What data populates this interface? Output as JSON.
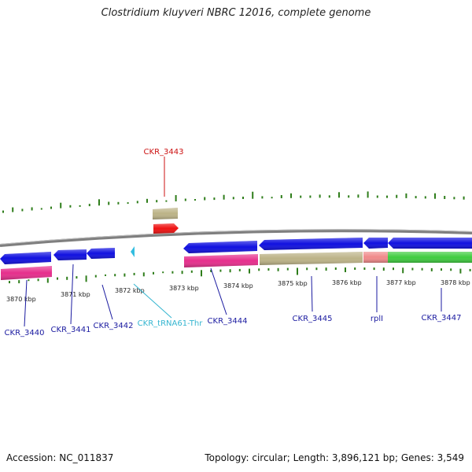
{
  "title": "Clostridium kluyveri NBRC 12016, complete genome",
  "accession": "Accession: NC_011837",
  "topology": "Topology: circular; Length: 3,896,121 bp; Genes: 3,549",
  "colors": {
    "backbone": "#808080",
    "gc_tick": "#2e7d1a",
    "cds_forward": "#1010e0",
    "cds_reverse_pink": "#e62e8c",
    "cds_olive": "#bcb387",
    "cds_green": "#3fcc3f",
    "cds_salmon": "#f08a8a",
    "cds_red": "#ee1111",
    "trna": "#33bde0",
    "label_blue": "#1a1aa0",
    "label_red": "#cc1111",
    "label_cyan": "#33b5d0"
  },
  "scale_labels": [
    "3870 kbp",
    "3871 kbp",
    "3872 kbp",
    "3873 kbp",
    "3874 kbp",
    "3875 kbp",
    "3876 kbp",
    "3877 kbp",
    "3878 kbp"
  ],
  "gene_labels": [
    {
      "text": "CKR_3443",
      "color": "label_red"
    },
    {
      "text": "CKR_3440",
      "color": "label_blue"
    },
    {
      "text": "CKR_3441",
      "color": "label_blue"
    },
    {
      "text": "CKR_3442",
      "color": "label_blue"
    },
    {
      "text": "CKR_tRNA61-Thr",
      "color": "label_cyan"
    },
    {
      "text": "CKR_3444",
      "color": "label_blue"
    },
    {
      "text": "CKR_3445",
      "color": "label_blue"
    },
    {
      "text": "rplI",
      "color": "label_blue"
    },
    {
      "text": "CKR_3447",
      "color": "label_blue"
    }
  ]
}
